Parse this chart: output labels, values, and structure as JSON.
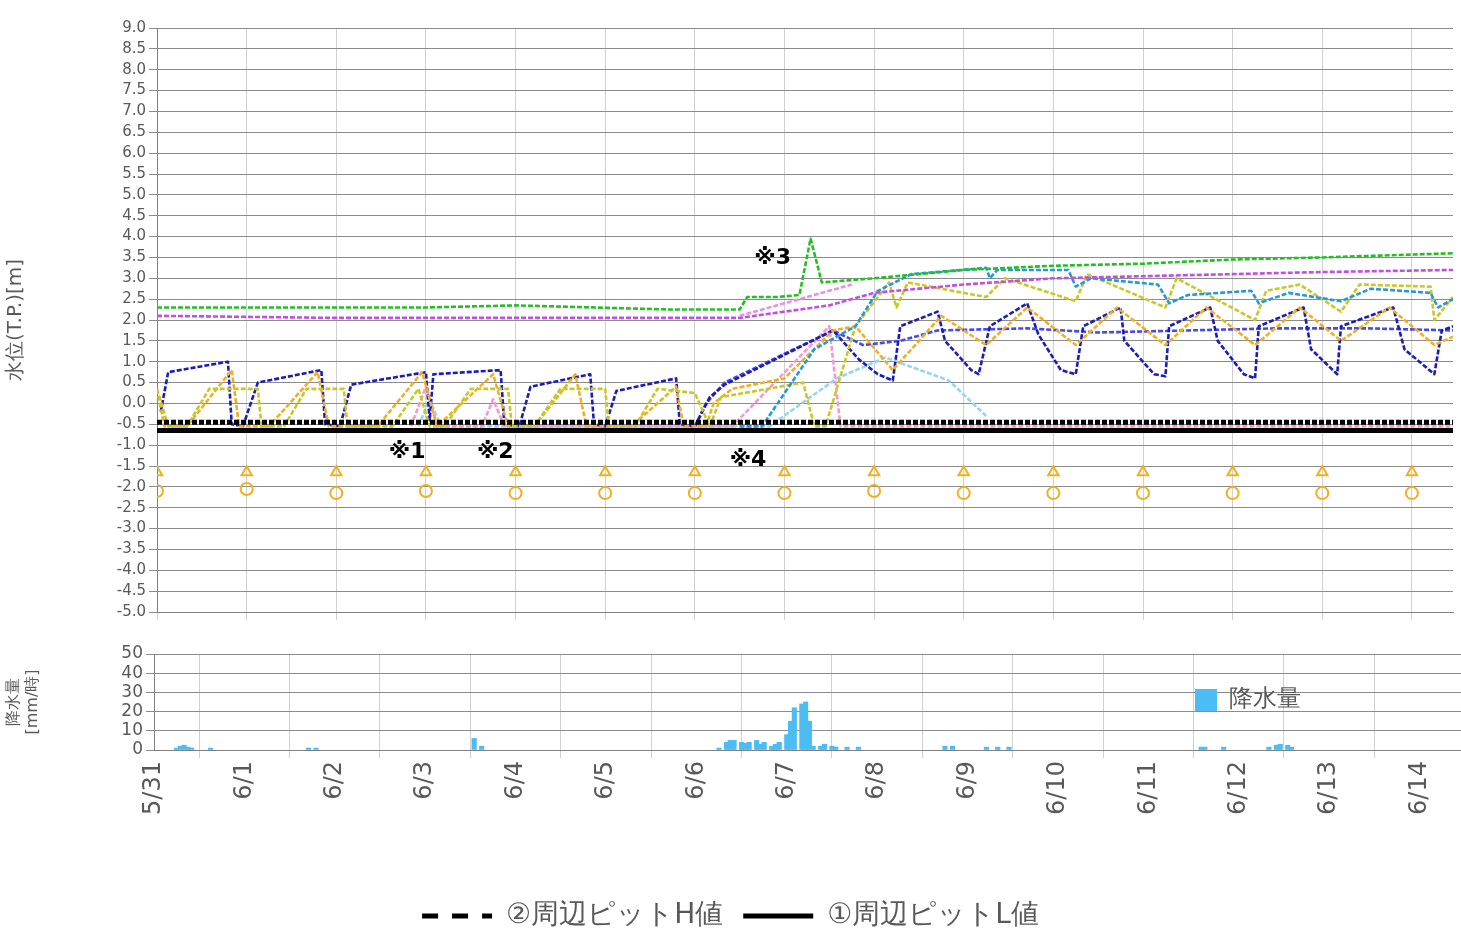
{
  "chart_data": [
    {
      "type": "line",
      "ylabel": "水位(T.P.)[m]",
      "xlim": [
        "--05-31T00:00",
        "--06-14T11:00"
      ],
      "xticks": [
        {
          "value": "--05-31",
          "label": null
        },
        {
          "value": "--06-01",
          "label": null
        },
        {
          "value": "--06-02",
          "label": null
        },
        {
          "value": "--06-03",
          "label": null
        },
        {
          "value": "--06-04",
          "label": null
        },
        {
          "value": "--06-05",
          "label": null
        },
        {
          "value": "--06-06",
          "label": null
        },
        {
          "value": "--06-07",
          "label": null
        },
        {
          "value": "--06-08",
          "label": null
        },
        {
          "value": "--06-09",
          "label": null
        },
        {
          "value": "--06-10",
          "label": null
        },
        {
          "value": "--06-11",
          "label": null
        },
        {
          "value": "--06-12",
          "label": null
        },
        {
          "value": "--06-13",
          "label": null
        },
        {
          "value": "--06-14",
          "label": null
        }
      ],
      "ylim": [
        -5,
        9
      ],
      "yticks": [
        {
          "value": 9,
          "label": "9.0"
        },
        {
          "value": 8.5,
          "label": "8.5"
        },
        {
          "value": 8,
          "label": "8.0"
        },
        {
          "value": 7.5,
          "label": "7.5"
        },
        {
          "value": 7,
          "label": "7.0"
        },
        {
          "value": 6.5,
          "label": "6.5"
        },
        {
          "value": 6,
          "label": "6.0"
        },
        {
          "value": 5.5,
          "label": "5.5"
        },
        {
          "value": 5,
          "label": "5.0"
        },
        {
          "value": 4.5,
          "label": "4.5"
        },
        {
          "value": 4,
          "label": "4.0"
        },
        {
          "value": 3.5,
          "label": "3.5"
        },
        {
          "value": 3,
          "label": "3.0"
        },
        {
          "value": 2.5,
          "label": "2.5"
        },
        {
          "value": 2,
          "label": "2.0"
        },
        {
          "value": 1.5,
          "label": "1.5"
        },
        {
          "value": 1,
          "label": "1.0"
        },
        {
          "value": 0.5,
          "label": "0.5"
        },
        {
          "value": 0,
          "label": "0.0"
        },
        {
          "value": -0.5,
          "label": "-0.5"
        },
        {
          "value": -1,
          "label": "-1.0"
        },
        {
          "value": -1.5,
          "label": "-1.5"
        },
        {
          "value": -2,
          "label": "-2.0"
        },
        {
          "value": -2.5,
          "label": "-2.5"
        },
        {
          "value": -3,
          "label": "-3.0"
        },
        {
          "value": -3.5,
          "label": "-3.5"
        },
        {
          "value": -4,
          "label": "-4.0"
        },
        {
          "value": -4.5,
          "label": "-4.5"
        },
        {
          "value": -5,
          "label": "-5.0"
        }
      ],
      "tick_labels": "y",
      "grid": true,
      "legend": "bottom",
      "marker": "none",
      "line_style": "dashed",
      "annotations": [
        "※1",
        "※2",
        "※3",
        "※4"
      ],
      "series": [
        {
          "color": "#22c022",
          "x": [
            "--05-31T00:00",
            "--06-03T00:00",
            "--06-04T00:00",
            "--06-05T18:00",
            "--06-06T12:00",
            "--06-06T14:00",
            "--06-06T22:00",
            "--06-07T04:00",
            "--06-07T07:00",
            "--06-07T10:00",
            "--06-08T00:00",
            "--06-09T00:00",
            "--06-10T00:00",
            "--06-11T00:00",
            "--06-12T00:00",
            "--06-13T00:00",
            "--06-14T11:00"
          ],
          "values": [
            2.3,
            2.3,
            2.35,
            2.25,
            2.25,
            2.55,
            2.55,
            2.6,
            3.95,
            2.9,
            3.0,
            3.2,
            3.3,
            3.35,
            3.45,
            3.5,
            3.6
          ]
        },
        {
          "color": "#c050e0",
          "x": [
            "--05-31T00:00",
            "--06-02T00:00",
            "--06-06T12:00",
            "--06-07T00:00",
            "--06-07T12:00",
            "--06-08T00:00",
            "--06-09T00:00",
            "--06-10T00:00",
            "--06-11T00:00",
            "--06-12T00:00",
            "--06-13T00:00",
            "--06-14T11:00"
          ],
          "values": [
            2.1,
            2.05,
            2.05,
            2.2,
            2.35,
            2.65,
            2.85,
            3.0,
            3.05,
            3.1,
            3.15,
            3.2
          ]
        },
        {
          "color": "#e890e8",
          "x": [
            "--06-06T12:00",
            "--06-07T00:00",
            "--06-07T12:00",
            "--06-07T18:00"
          ],
          "values": [
            2.1,
            2.4,
            2.7,
            2.85
          ]
        },
        {
          "color": "#2898d8",
          "x": [
            "--06-06T12:00",
            "--06-06T18:00",
            "--06-07T08:00",
            "--06-07T19:00",
            "--06-08T01:00",
            "--06-08T10:00",
            "--06-09T06:00",
            "--06-09T07:00",
            "--06-09T09:00",
            "--06-10T04:00",
            "--06-10T06:00",
            "--06-10T10:00",
            "--06-11T04:00",
            "--06-11T07:00",
            "--06-11T12:00",
            "--06-12T05:00",
            "--06-12T07:00",
            "--06-12T15:00",
            "--06-13T05:00",
            "--06-13T13:00",
            "--06-14T05:00",
            "--06-14T07:00",
            "--06-14T11:00"
          ],
          "values": [
            -0.55,
            -0.55,
            1.3,
            1.85,
            2.7,
            3.1,
            3.25,
            3.0,
            3.2,
            3.2,
            2.8,
            3.0,
            2.85,
            2.4,
            2.6,
            2.7,
            2.4,
            2.65,
            2.45,
            2.75,
            2.65,
            2.3,
            2.5
          ]
        },
        {
          "color": "#c8c828",
          "x": [
            "--05-31T00:00",
            "--05-31T03:00",
            "--05-31T08:00",
            "--05-31T14:00",
            "--06-01T03:00",
            "--06-01T04:00",
            "--06-01T10:00",
            "--06-01T16:00",
            "--06-02T02:00",
            "--06-02T03:00",
            "--06-02T15:00",
            "--06-02T22:00",
            "--06-03T01:00",
            "--06-03T05:00",
            "--06-03T12:00",
            "--06-03T22:00",
            "--06-03T23:00",
            "--06-04T05:00",
            "--06-04T12:00",
            "--06-05T00:00",
            "--06-05T01:00",
            "--06-05T08:00",
            "--06-05T14:00",
            "--06-06T00:00",
            "--06-06T04:00",
            "--06-06T07:00",
            "--06-07T05:00",
            "--06-07T08:00",
            "--06-07T11:00",
            "--06-07T19:00",
            "--06-08T04:00",
            "--06-08T06:00",
            "--06-08T09:00",
            "--06-09T06:00",
            "--06-09T11:00",
            "--06-10T06:00",
            "--06-10T09:00",
            "--06-11T06:00",
            "--06-11T09:00",
            "--06-12T06:00",
            "--06-12T09:00",
            "--06-12T18:00",
            "--06-13T05:00",
            "--06-13T10:00",
            "--06-14T05:00",
            "--06-14T06:00",
            "--06-14T11:00"
          ],
          "values": [
            0.35,
            -0.55,
            -0.55,
            0.35,
            0.35,
            -0.55,
            -0.55,
            0.35,
            0.35,
            -0.55,
            -0.55,
            0.35,
            -0.55,
            -0.55,
            0.35,
            0.35,
            -0.55,
            -0.55,
            0.35,
            0.35,
            -0.55,
            -0.55,
            0.35,
            0.25,
            -0.55,
            0.15,
            0.5,
            -0.55,
            -0.55,
            1.85,
            2.9,
            2.3,
            2.9,
            2.55,
            3.0,
            2.45,
            3.1,
            2.3,
            3.0,
            2.0,
            2.7,
            2.85,
            2.2,
            2.85,
            2.8,
            2.0,
            2.55
          ]
        },
        {
          "color": "#f0b020",
          "x": [
            "--05-31T00:00",
            "--05-31T02:00",
            "--05-31T08:00",
            "--05-31T20:00",
            "--05-31T22:00",
            "--06-01T06:00",
            "--06-01T19:00",
            "--06-01T22:00",
            "--06-02T11:00",
            "--06-02T23:00",
            "--06-03T03:00",
            "--06-03T18:00",
            "--06-03T22:00",
            "--06-04T05:00",
            "--06-04T16:00",
            "--06-04T19:00",
            "--06-05T07:00",
            "--06-05T19:00",
            "--06-05T21:00",
            "--06-06T03:00",
            "--06-06T05:00",
            "--06-06T10:00",
            "--06-07T00:00",
            "--06-07T13:00",
            "--06-07T19:00",
            "--06-08T05:00",
            "--06-08T18:00",
            "--06-09T06:00",
            "--06-09T17:00",
            "--06-10T06:00",
            "--06-10T17:00",
            "--06-11T06:00",
            "--06-11T17:00",
            "--06-12T06:00",
            "--06-12T18:00",
            "--06-13T05:00",
            "--06-13T18:00",
            "--06-14T06:00",
            "--06-14T11:00"
          ],
          "values": [
            0.35,
            -0.55,
            -0.55,
            0.8,
            -0.55,
            -0.55,
            0.75,
            -0.55,
            -0.55,
            0.75,
            -0.55,
            0.7,
            -0.55,
            -0.55,
            0.7,
            -0.55,
            -0.55,
            0.4,
            -0.55,
            -0.55,
            0.0,
            0.35,
            0.6,
            1.75,
            1.85,
            0.8,
            2.1,
            1.4,
            2.3,
            1.4,
            2.3,
            1.4,
            2.3,
            1.4,
            2.3,
            1.5,
            2.3,
            1.4,
            1.6
          ]
        },
        {
          "color": "#1c1cb8",
          "x": [
            "--05-31T01:00",
            "--05-31T03:00",
            "--05-31T19:00",
            "--05-31T20:00",
            "--05-31T23:00",
            "--06-01T03:00",
            "--06-01T20:00",
            "--06-01T21:00",
            "--06-02T01:00",
            "--06-02T04:00",
            "--06-03T00:00",
            "--06-03T01:00",
            "--06-03T02:00",
            "--06-03T20:00",
            "--06-03T21:00",
            "--06-04T01:00",
            "--06-04T04:00",
            "--06-04T20:00",
            "--06-04T21:00",
            "--06-05T00:00",
            "--06-05T03:00",
            "--06-05T19:00",
            "--06-05T20:00",
            "--06-06T00:00",
            "--06-06T04:00",
            "--06-06T08:00",
            "--06-07T13:00",
            "--06-07T20:00",
            "--06-08T01:00",
            "--06-08T05:00",
            "--06-08T07:00",
            "--06-08T17:00",
            "--06-08T19:00",
            "--06-09T02:00",
            "--06-09T04:00",
            "--06-09T07:00",
            "--06-09T17:00",
            "--06-09T20:00",
            "--06-10T02:00",
            "--06-10T06:00",
            "--06-10T08:00",
            "--06-10T18:00",
            "--06-10T19:00",
            "--06-11T03:00",
            "--06-11T06:00",
            "--06-11T07:00",
            "--06-11T18:00",
            "--06-11T20:00",
            "--06-12T03:00",
            "--06-12T06:00",
            "--06-12T07:00",
            "--06-12T19:00",
            "--06-12T21:00",
            "--06-13T04:00",
            "--06-13T05:00",
            "--06-13T19:00",
            "--06-13T22:00",
            "--06-14T06:00",
            "--06-14T08:00",
            "--06-14T11:00"
          ],
          "values": [
            -0.2,
            0.75,
            1.0,
            -0.5,
            -0.55,
            0.5,
            0.8,
            -0.5,
            -0.55,
            0.45,
            0.75,
            -0.4,
            0.7,
            0.8,
            -0.5,
            -0.55,
            0.4,
            0.7,
            -0.5,
            -0.55,
            0.3,
            0.6,
            -0.5,
            -0.55,
            0.15,
            0.45,
            1.75,
            1.05,
            0.7,
            0.55,
            1.85,
            2.2,
            1.5,
            0.8,
            0.7,
            1.85,
            2.4,
            1.65,
            0.8,
            0.7,
            1.85,
            2.3,
            1.5,
            0.7,
            0.65,
            1.85,
            2.3,
            1.5,
            0.7,
            0.6,
            1.85,
            2.3,
            1.3,
            0.7,
            1.85,
            2.3,
            1.3,
            0.7,
            1.75,
            1.85
          ]
        },
        {
          "color": "#4848f0",
          "x": [
            "--06-06T00:00",
            "--06-06T03:00",
            "--06-06T08:00",
            "--06-07T13:00",
            "--06-07T21:00",
            "--06-08T07:00",
            "--06-08T17:00",
            "--06-09T17:00",
            "--06-10T12:00",
            "--06-11T12:00",
            "--06-12T12:00",
            "--06-13T12:00",
            "--06-14T11:00"
          ],
          "values": [
            -0.55,
            0.0,
            0.5,
            1.75,
            1.4,
            1.5,
            1.75,
            1.8,
            1.7,
            1.75,
            1.8,
            1.8,
            1.75
          ]
        },
        {
          "color": "#f49ad0",
          "x": [
            "--06-02T20:00",
            "--06-03T00:00",
            "--06-03T03:00",
            "--06-03T15:00",
            "--06-03T18:00",
            "--06-03T21:00",
            "--06-06T10:00",
            "--06-07T12:00",
            "--06-07T15:00",
            "--06-14T11:00"
          ],
          "values": [
            -0.55,
            0.4,
            -0.55,
            -0.55,
            0.1,
            -0.55,
            -0.55,
            1.85,
            -0.55,
            -0.55
          ]
        },
        {
          "color": "#98d4f4",
          "x": [
            "--06-02T22:00",
            "--06-03T01:00",
            "--06-03T04:00",
            "--06-06T20:00",
            "--06-07T14:00",
            "--06-08T03:00",
            "--06-08T20:00",
            "--06-09T06:00"
          ],
          "values": [
            -0.55,
            0.1,
            -0.55,
            -0.55,
            0.6,
            1.1,
            0.55,
            -0.3
          ]
        },
        {
          "type": "scatter",
          "marker": "triangle",
          "color": "#f0b020",
          "x": [
            "--05-31",
            "--06-01",
            "--06-02",
            "--06-03",
            "--06-04",
            "--06-05",
            "--06-06",
            "--06-07",
            "--06-08",
            "--06-09",
            "--06-10",
            "--06-11",
            "--06-12",
            "--06-13",
            "--06-14"
          ],
          "values": [
            -1.65,
            -1.65,
            -1.65,
            -1.65,
            -1.65,
            -1.65,
            -1.65,
            -1.65,
            -1.65,
            -1.65,
            -1.65,
            -1.65,
            -1.65,
            -1.65,
            -1.65
          ]
        },
        {
          "type": "scatter",
          "marker": "circle",
          "color": "#f0b020",
          "x": [
            "--05-31",
            "--06-01",
            "--06-02",
            "--06-03",
            "--06-04",
            "--06-05",
            "--06-06",
            "--06-07",
            "--06-08",
            "--06-09",
            "--06-10",
            "--06-11",
            "--06-12",
            "--06-13",
            "--06-14"
          ],
          "values": [
            -2.1,
            -2.05,
            -2.15,
            -2.1,
            -2.15,
            -2.15,
            -2.15,
            -2.15,
            -2.1,
            -2.15,
            -2.15,
            -2.15,
            -2.15,
            -2.15,
            -2.15
          ]
        },
        {
          "name": "②周辺ピットH値",
          "color": "#000000",
          "line_style": "dashed",
          "x": [
            "--05-31T00:00",
            "--06-14T11:00"
          ],
          "values": [
            -0.45,
            -0.45
          ]
        },
        {
          "name": "①周辺ピットL値",
          "color": "#000000",
          "line_style": "solid",
          "x": [
            "--05-31T00:00",
            "--06-14T11:00"
          ],
          "values": [
            -0.65,
            -0.65
          ]
        }
      ]
    },
    {
      "type": "bar",
      "ylabel": "降水量 [mm/時]",
      "xlim": [
        "--05-31T00:00",
        "--06-14T11:00"
      ],
      "xticks": [
        {
          "value": "--05-31",
          "label": "5/31"
        },
        {
          "value": "--06-01",
          "label": "6/1"
        },
        {
          "value": "--06-02",
          "label": "6/2"
        },
        {
          "value": "--06-03",
          "label": "6/3"
        },
        {
          "value": "--06-04",
          "label": "6/4"
        },
        {
          "value": "--06-05",
          "label": "6/5"
        },
        {
          "value": "--06-06",
          "label": "6/6"
        },
        {
          "value": "--06-07",
          "label": "6/7"
        },
        {
          "value": "--06-08",
          "label": "6/8"
        },
        {
          "value": "--06-09",
          "label": "6/9"
        },
        {
          "value": "--06-10",
          "label": "6/10"
        },
        {
          "value": "--06-11",
          "label": "6/11"
        },
        {
          "value": "--06-12",
          "label": "6/12"
        },
        {
          "value": "--06-13",
          "label": "6/13"
        },
        {
          "value": "--06-14",
          "label": "6/14"
        }
      ],
      "ylim": [
        0,
        50
      ],
      "yticks": [
        0,
        10,
        20,
        30,
        40,
        50
      ],
      "grid": true,
      "legend": "top right",
      "series": [
        {
          "name": "降水量",
          "color": "#4cbcf4",
          "x": [
            "--05-31T06:00",
            "--05-31T07:00",
            "--05-31T08:00",
            "--05-31T09:00",
            "--05-31T10:00",
            "--05-31T15:00",
            "--06-01T17:00",
            "--06-01T19:00",
            "--06-03T13:00",
            "--06-03T15:00",
            "--06-06T06:00",
            "--06-06T08:00",
            "--06-06T09:00",
            "--06-06T10:00",
            "--06-06T12:00",
            "--06-06T13:00",
            "--06-06T14:00",
            "--06-06T16:00",
            "--06-06T17:00",
            "--06-06T18:00",
            "--06-06T20:00",
            "--06-06T21:00",
            "--06-06T22:00",
            "--06-07T00:00",
            "--06-07T01:00",
            "--06-07T02:00",
            "--06-07T04:00",
            "--06-07T05:00",
            "--06-07T06:00",
            "--06-07T07:00",
            "--06-07T09:00",
            "--06-07T10:00",
            "--06-07T12:00",
            "--06-07T13:00",
            "--06-07T16:00",
            "--06-07T19:00",
            "--06-08T18:00",
            "--06-08T20:00",
            "--06-09T05:00",
            "--06-09T08:00",
            "--06-09T11:00",
            "--06-11T14:00",
            "--06-11T15:00",
            "--06-11T20:00",
            "--06-12T08:00",
            "--06-12T10:00",
            "--06-12T11:00",
            "--06-12T13:00",
            "--06-12T14:00"
          ],
          "values": [
            1,
            2,
            2.5,
            1.5,
            1,
            1,
            1,
            1,
            6,
            2,
            1,
            4,
            5,
            5,
            4,
            3.5,
            4,
            5,
            3,
            4,
            2,
            3,
            4,
            8,
            15,
            22,
            24,
            25,
            15,
            2,
            2,
            3,
            2,
            1.5,
            1.5,
            1.5,
            2,
            2,
            1.5,
            1.5,
            1.5,
            1.5,
            1.5,
            1.5,
            1.5,
            2.5,
            3,
            2.5,
            1.5
          ]
        }
      ]
    }
  ]
}
